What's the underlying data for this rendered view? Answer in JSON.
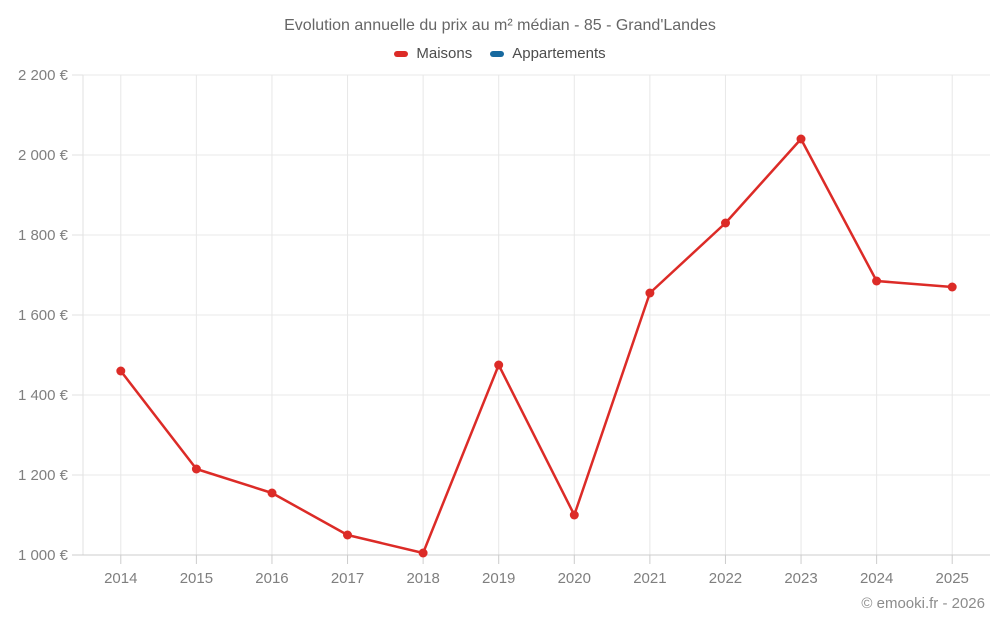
{
  "chart_data": {
    "type": "line",
    "title": "Evolution annuelle du prix au m² médian - 85 - Grand'Landes",
    "xlabel": "",
    "ylabel": "",
    "categories": [
      "2014",
      "2015",
      "2016",
      "2017",
      "2018",
      "2019",
      "2020",
      "2021",
      "2022",
      "2023",
      "2024",
      "2025"
    ],
    "series": [
      {
        "name": "Maisons",
        "color": "#dc2b27",
        "values": [
          1460,
          1215,
          1155,
          1050,
          1005,
          1475,
          1100,
          1655,
          1830,
          2040,
          1685,
          1670
        ]
      },
      {
        "name": "Appartements",
        "color": "#17699f",
        "values": []
      }
    ],
    "ylim": [
      1000,
      2200
    ],
    "yticks": [
      {
        "value": 1000,
        "label": "1 000 €"
      },
      {
        "value": 1200,
        "label": "1 200 €"
      },
      {
        "value": 1400,
        "label": "1 400 €"
      },
      {
        "value": 1600,
        "label": "1 600 €"
      },
      {
        "value": 1800,
        "label": "1 800 €"
      },
      {
        "value": 2000,
        "label": "2 000 €"
      },
      {
        "value": 2200,
        "label": "2 200 €"
      }
    ],
    "grid": true,
    "legend_position": "top",
    "footer": "© emooki.fr - 2026",
    "colors": {
      "grid": "#e8e8e8",
      "axis": "#cccccc",
      "axis_light": "#e2e2e2",
      "title_text": "#666666",
      "legend_text": "#4d4d4d",
      "tick_text": "#7f7f7f",
      "footer_text": "#8c8c8c"
    }
  }
}
